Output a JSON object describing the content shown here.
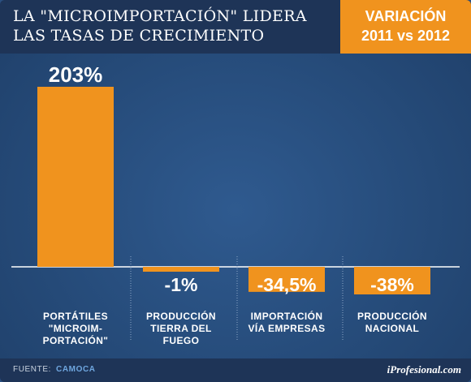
{
  "header": {
    "title_line1": "LA \"MICROIMPORTACIÓN\" LIDERA",
    "title_line2": "LAS TASAS DE CRECIMIENTO",
    "badge_line1": "VARIACIÓN",
    "badge_line2": "2011 vs 2012"
  },
  "footer": {
    "source_label": "FUENTE:",
    "source_value": "CAMOCA",
    "brand": "iProfesional.com"
  },
  "colors": {
    "bar": "#f0931e",
    "header_bg": "#1e3457",
    "background": "#2a4f80"
  },
  "chart_data": {
    "type": "bar",
    "title": "LA \"MICROIMPORTACIÓN\" LIDERA LAS TASAS DE CRECIMIENTO",
    "subtitle": "VARIACIÓN 2011 vs 2012",
    "categories": [
      [
        "PORTÁTILES",
        "\"MICROIM-",
        "PORTACIÓN\""
      ],
      [
        "PRODUCCIÓN",
        "TIERRA DEL",
        "FUEGO"
      ],
      [
        "IMPORTACIÓN",
        "VÍA EMPRESAS"
      ],
      [
        "PRODUCCIÓN",
        "NACIONAL"
      ]
    ],
    "values": [
      203,
      -1,
      -34.5,
      -38
    ],
    "data_labels": [
      "203%",
      "-1%",
      "-34,5%",
      "-38%"
    ],
    "unit": "%",
    "grid": false
  }
}
